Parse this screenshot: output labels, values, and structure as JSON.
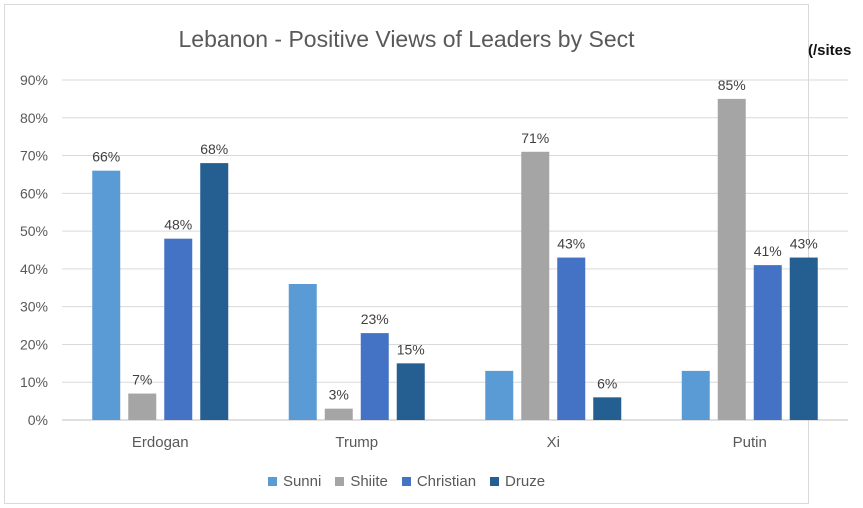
{
  "side_link": "(/sites",
  "chart_data": {
    "type": "bar",
    "title": "Lebanon - Positive Views of Leaders by Sect",
    "xlabel": "",
    "ylabel": "",
    "ylim": [
      0,
      90
    ],
    "y_ticks": [
      "0%",
      "10%",
      "20%",
      "30%",
      "40%",
      "50%",
      "60%",
      "70%",
      "80%",
      "90%"
    ],
    "categories": [
      "Erdogan",
      "Trump",
      "Xi",
      "Putin"
    ],
    "series": [
      {
        "name": "Sunni",
        "color": "#5b9bd5",
        "values": [
          66,
          36,
          13,
          13
        ],
        "labels": [
          "66%",
          "",
          "",
          ""
        ]
      },
      {
        "name": "Shiite",
        "color": "#a5a5a5",
        "values": [
          7,
          3,
          71,
          85
        ],
        "labels": [
          "7%",
          "3%",
          "71%",
          "85%"
        ]
      },
      {
        "name": "Christian",
        "color": "#4472c4",
        "values": [
          48,
          23,
          43,
          41
        ],
        "labels": [
          "48%",
          "23%",
          "43%",
          "41%"
        ]
      },
      {
        "name": "Druze",
        "color": "#255e91",
        "values": [
          68,
          15,
          6,
          43
        ],
        "labels": [
          "68%",
          "15%",
          "6%",
          "43%"
        ]
      }
    ],
    "legend_position": "bottom",
    "grid": true
  }
}
